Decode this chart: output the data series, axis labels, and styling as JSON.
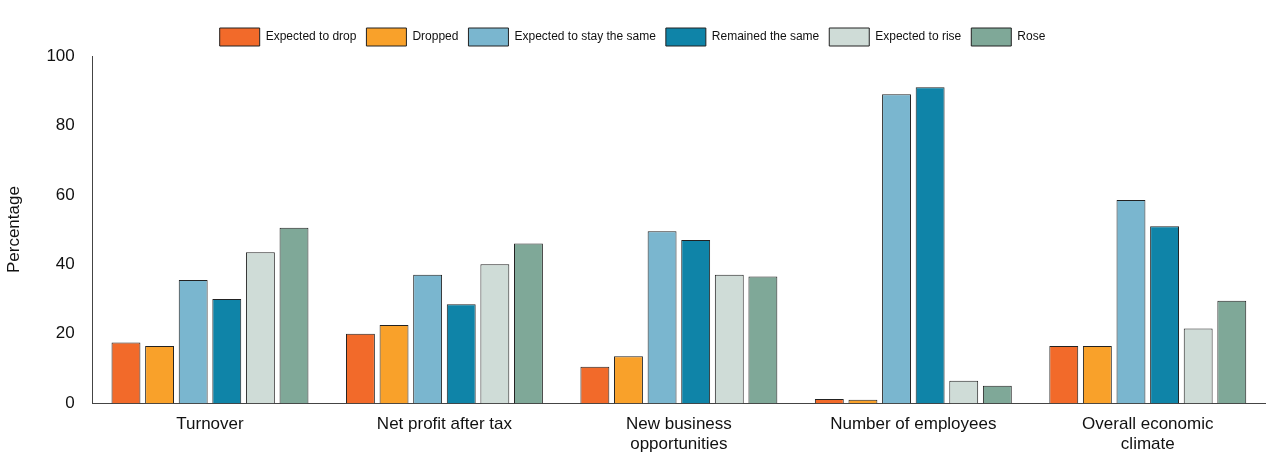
{
  "chart_data": {
    "type": "bar",
    "ylabel": "Percentage",
    "categories": [
      "Turnover",
      "Net profit after tax",
      "New business opportunities",
      "Number of employees",
      "Overall economic climate"
    ],
    "series": [
      {
        "name": "Expected to drop",
        "color": "#f26a2a",
        "values": [
          17.5,
          20,
          10.5,
          1.2,
          16.5
        ]
      },
      {
        "name": "Dropped",
        "color": "#f9a12a",
        "values": [
          16.5,
          22.5,
          13.5,
          1,
          16.5
        ]
      },
      {
        "name": "Expected to stay the same",
        "color": "#7ab6cf",
        "values": [
          35.5,
          37,
          49.5,
          89,
          58.5
        ]
      },
      {
        "name": "Remained the same",
        "color": "#0f84a8",
        "values": [
          30,
          28.5,
          47,
          91,
          51
        ]
      },
      {
        "name": "Expected to rise",
        "color": "#cfdcd7",
        "values": [
          43.5,
          40,
          37,
          6.5,
          21.5
        ]
      },
      {
        "name": "Rose",
        "color": "#7fa898",
        "values": [
          50.5,
          46,
          36.5,
          5,
          29.5
        ]
      }
    ],
    "ylim": [
      0,
      100
    ],
    "yticks": [
      0,
      20,
      40,
      60,
      80,
      100
    ],
    "grid": false,
    "legend": "top"
  }
}
